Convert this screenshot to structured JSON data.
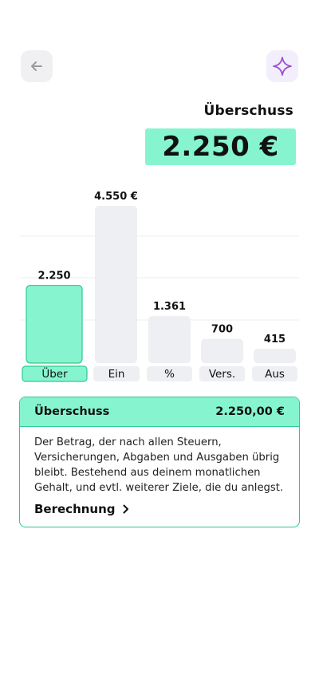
{
  "header": {
    "back_icon": "arrow-left-icon",
    "sparkle_icon": "sparkle-icon",
    "accent_color": "#86f5cf",
    "sparkle_color": "#9b4fd6"
  },
  "summary": {
    "label": "Überschuss",
    "value": "2.250 €"
  },
  "chart_data": {
    "type": "bar",
    "categories": [
      "Über",
      "Ein",
      "%",
      "Vers.",
      "Aus"
    ],
    "values": [
      2250,
      4550,
      1361,
      700,
      415
    ],
    "data_labels": [
      "2.250",
      "4.550 €",
      "1.361",
      "700",
      "415"
    ],
    "ylim": [
      0,
      4550
    ],
    "grid": true,
    "highlight_index": 0,
    "highlight_color": "#86f5cf",
    "bar_color": "#eeeff2"
  },
  "info": {
    "title": "Überschuss",
    "amount": "2.250,00 €",
    "text_lines": [
      "Der Betrag, der nach allen Steuern,",
      "Versicherungen, Abgaben und Ausgaben übrig",
      "bleibt. Bestehend aus deinem monatlichen",
      "Gehalt, und evtl. weiterer Ziele, die du anlegst."
    ],
    "link_label": "Berechnung",
    "link_icon": "chevron-right-icon"
  }
}
